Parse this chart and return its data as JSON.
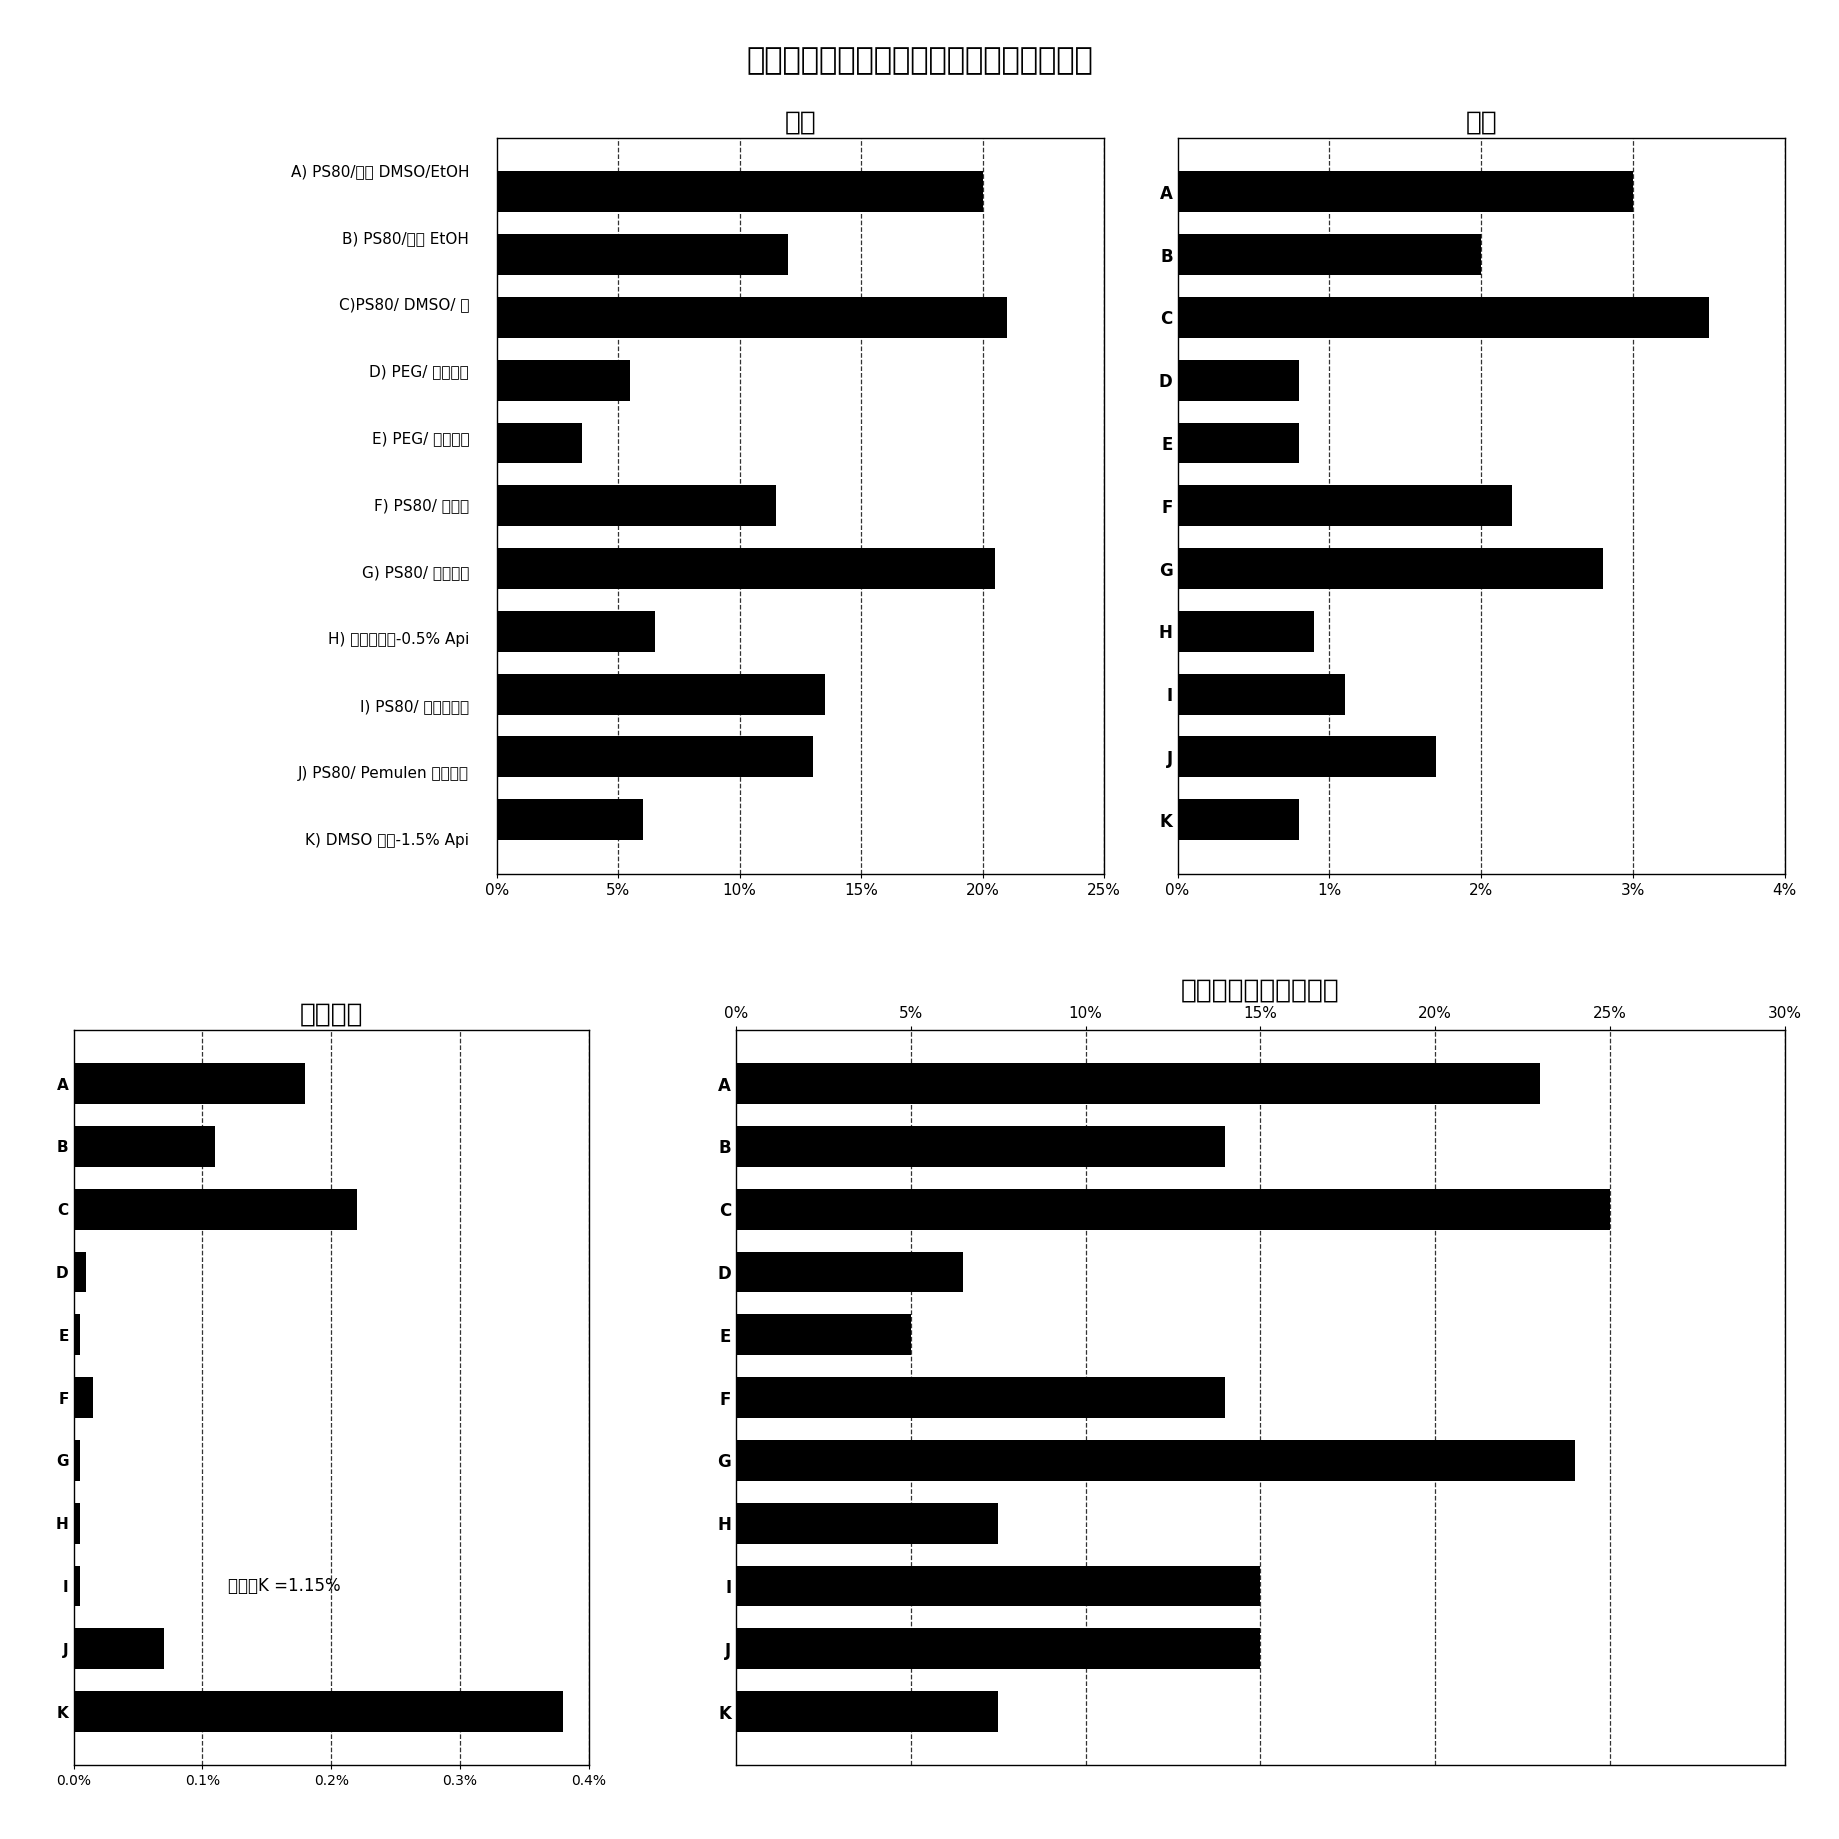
{
  "title": "在指定的皮肤层中检测到的施用剂量百分比",
  "categories": [
    "A",
    "B",
    "C",
    "D",
    "E",
    "F",
    "G",
    "H",
    "I",
    "J",
    "K"
  ],
  "labels_left": [
    "A) PS80/无水 DMSO/EtOH",
    "B) PS80/无水 EtOH",
    "C)PS80/ DMSO/ 水",
    "D) PEG/ 无水溶液",
    "E) PEG/ 无水软膏",
    "F) PS80/ 水凝胶",
    "G) PS80/ 对照溶液",
    "H) 纳米水凝胶-0.5% Api",
    "I) PS80/ 蜡基乳状液",
    "J) PS80/ Pemulen 基乳状液",
    "K) DMSO 对照-1.5% Api"
  ],
  "epidermis": {
    "title": "表皮",
    "values": [
      20.0,
      12.0,
      21.0,
      5.5,
      3.5,
      11.5,
      20.5,
      6.5,
      13.5,
      13.0,
      6.0
    ],
    "xlim": [
      0,
      25
    ],
    "xticks": [
      0,
      5,
      10,
      15,
      20,
      25
    ],
    "xticklabels": [
      "0%",
      "5%",
      "10%",
      "15%",
      "20%",
      "25%"
    ]
  },
  "dermis": {
    "title": "真皮",
    "values": [
      3.0,
      2.0,
      3.5,
      0.8,
      0.8,
      2.2,
      2.8,
      0.9,
      1.1,
      1.7,
      0.8
    ],
    "xlim": [
      0,
      4
    ],
    "xticks": [
      0,
      1,
      2,
      3,
      4
    ],
    "xticklabels": [
      "0%",
      "1%",
      "2%",
      "3%",
      "4%"
    ]
  },
  "receptor": {
    "title": "受体流体",
    "values": [
      0.18,
      0.11,
      0.22,
      0.01,
      0.005,
      0.015,
      0.005,
      0.005,
      0.005,
      0.07,
      0.38
    ],
    "xlim": [
      0,
      0.4
    ],
    "xticks": [
      0.0,
      0.1,
      0.2,
      0.3,
      0.4
    ],
    "xticklabels": [
      "0.0%",
      "0.1%",
      "0.2%",
      "0.3%",
      "0.4%"
    ],
    "annotation": "备注：K =1.15%"
  },
  "total": {
    "title": "所施用剂量的总渗透率",
    "values": [
      23.0,
      14.0,
      25.0,
      6.5,
      5.0,
      14.0,
      24.0,
      7.5,
      15.0,
      15.0,
      7.5
    ],
    "xlim": [
      0,
      30
    ],
    "xticks": [
      0,
      5,
      10,
      15,
      20,
      25,
      30
    ],
    "xticklabels": [
      "0%",
      "5%",
      "10%",
      "15%",
      "20%",
      "25%",
      "30%"
    ]
  },
  "bar_color": "#000000",
  "background_color": "#ffffff"
}
